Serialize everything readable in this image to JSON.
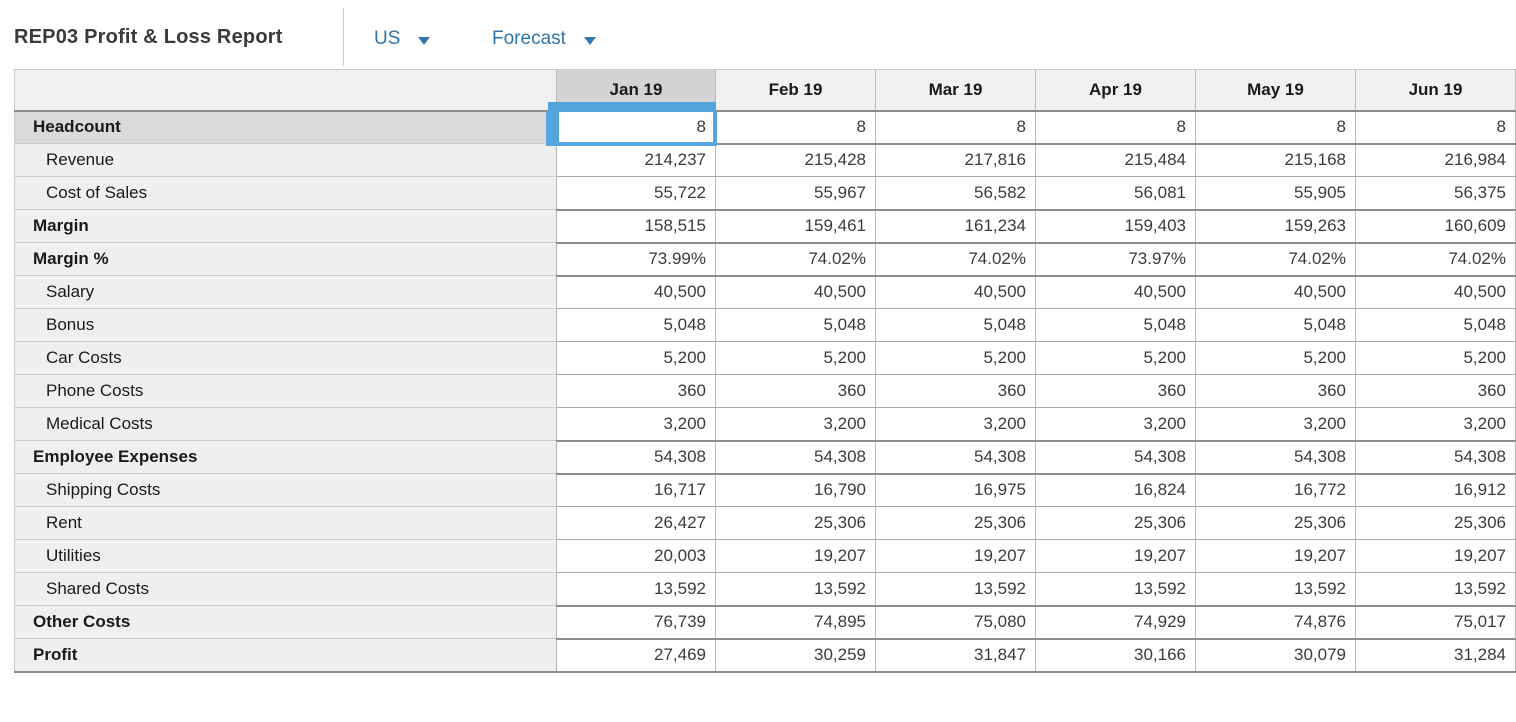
{
  "header": {
    "title": "REP03 Profit & Loss Report",
    "region_selector": {
      "label": "US"
    },
    "scenario_selector": {
      "label": "Forecast"
    }
  },
  "colors": {
    "selection_blue": "#55a5dc",
    "link_blue": "#2e75ad",
    "selected_header_gray": "#d3d3d3",
    "header_gray": "#f1f1f1"
  },
  "table": {
    "columns": [
      "Jan 19",
      "Feb 19",
      "Mar 19",
      "Apr 19",
      "May 19",
      "Jun 19"
    ],
    "selection": {
      "row_index": 0,
      "col_index": 0
    },
    "rows": [
      {
        "label": "Headcount",
        "total": true,
        "values": [
          "8",
          "8",
          "8",
          "8",
          "8",
          "8"
        ]
      },
      {
        "label": "Revenue",
        "total": false,
        "values": [
          "214,237",
          "215,428",
          "217,816",
          "215,484",
          "215,168",
          "216,984"
        ]
      },
      {
        "label": "Cost of Sales",
        "total": false,
        "values": [
          "55,722",
          "55,967",
          "56,582",
          "56,081",
          "55,905",
          "56,375"
        ]
      },
      {
        "label": "Margin",
        "total": true,
        "values": [
          "158,515",
          "159,461",
          "161,234",
          "159,403",
          "159,263",
          "160,609"
        ]
      },
      {
        "label": "Margin %",
        "total": true,
        "values": [
          "73.99%",
          "74.02%",
          "74.02%",
          "73.97%",
          "74.02%",
          "74.02%"
        ]
      },
      {
        "label": "Salary",
        "total": false,
        "values": [
          "40,500",
          "40,500",
          "40,500",
          "40,500",
          "40,500",
          "40,500"
        ]
      },
      {
        "label": "Bonus",
        "total": false,
        "values": [
          "5,048",
          "5,048",
          "5,048",
          "5,048",
          "5,048",
          "5,048"
        ]
      },
      {
        "label": "Car Costs",
        "total": false,
        "values": [
          "5,200",
          "5,200",
          "5,200",
          "5,200",
          "5,200",
          "5,200"
        ]
      },
      {
        "label": "Phone Costs",
        "total": false,
        "values": [
          "360",
          "360",
          "360",
          "360",
          "360",
          "360"
        ]
      },
      {
        "label": "Medical Costs",
        "total": false,
        "values": [
          "3,200",
          "3,200",
          "3,200",
          "3,200",
          "3,200",
          "3,200"
        ]
      },
      {
        "label": "Employee Expenses",
        "total": true,
        "values": [
          "54,308",
          "54,308",
          "54,308",
          "54,308",
          "54,308",
          "54,308"
        ]
      },
      {
        "label": "Shipping Costs",
        "total": false,
        "values": [
          "16,717",
          "16,790",
          "16,975",
          "16,824",
          "16,772",
          "16,912"
        ]
      },
      {
        "label": "Rent",
        "total": false,
        "values": [
          "26,427",
          "25,306",
          "25,306",
          "25,306",
          "25,306",
          "25,306"
        ]
      },
      {
        "label": "Utilities",
        "total": false,
        "values": [
          "20,003",
          "19,207",
          "19,207",
          "19,207",
          "19,207",
          "19,207"
        ]
      },
      {
        "label": "Shared Costs",
        "total": false,
        "values": [
          "13,592",
          "13,592",
          "13,592",
          "13,592",
          "13,592",
          "13,592"
        ]
      },
      {
        "label": "Other Costs",
        "total": true,
        "values": [
          "76,739",
          "74,895",
          "75,080",
          "74,929",
          "74,876",
          "75,017"
        ]
      },
      {
        "label": "Profit",
        "total": true,
        "values": [
          "27,469",
          "30,259",
          "31,847",
          "30,166",
          "30,079",
          "31,284"
        ]
      }
    ]
  }
}
